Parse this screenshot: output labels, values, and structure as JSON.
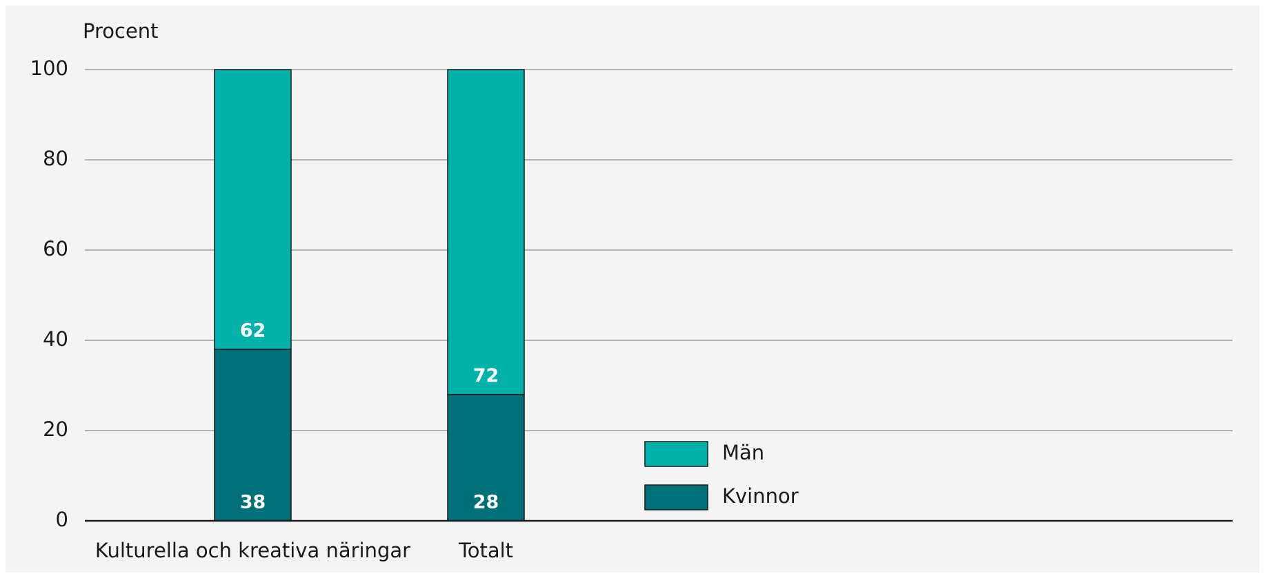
{
  "chart_data": {
    "type": "stacked_bar",
    "y_axis_label": "Procent",
    "categories": [
      "Kulturella och kreativa näringar",
      "Totalt"
    ],
    "series": [
      {
        "name": "Kvinnor",
        "color": "#007078",
        "values": [
          38,
          28
        ]
      },
      {
        "name": "Män",
        "color": "#00b2a9",
        "values": [
          62,
          72
        ]
      }
    ],
    "ylim": [
      0,
      100
    ],
    "yticks": [
      0,
      20,
      40,
      60,
      80,
      100
    ],
    "grid": true,
    "legend": "lower center"
  }
}
